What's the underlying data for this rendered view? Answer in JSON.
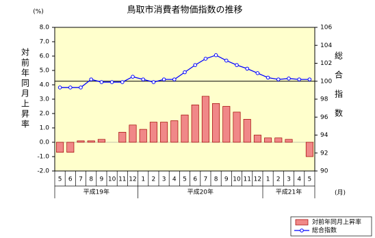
{
  "chart_data": {
    "type": "bar-line",
    "title": "鳥取市消費者物価指数の推移",
    "y_unit": "(%)",
    "x_unit": "(月)",
    "y_label": "対前年同月上昇率",
    "y2_label": "総合指数",
    "categories": [
      "5",
      "6",
      "7",
      "8",
      "9",
      "10",
      "11",
      "12",
      "1",
      "2",
      "3",
      "4",
      "5",
      "6",
      "7",
      "8",
      "9",
      "10",
      "11",
      "12",
      "1",
      "2",
      "3",
      "4",
      "5"
    ],
    "groups": [
      "平成19年",
      "平成20年",
      "平成21年"
    ],
    "series": [
      {
        "name": "対前年同月上昇率",
        "type": "bar",
        "color": "#f08888",
        "edge_color": "#a00000",
        "values": [
          -0.7,
          -0.7,
          0.1,
          0.1,
          0.2,
          0.0,
          0.7,
          1.2,
          0.9,
          1.4,
          1.4,
          1.5,
          1.9,
          2.6,
          3.2,
          2.7,
          2.5,
          2.1,
          1.6,
          0.5,
          0.3,
          0.3,
          0.2,
          0.0,
          -1.0
        ]
      },
      {
        "name": "総合指数",
        "type": "line",
        "axis": "y2",
        "color": "#0000ff",
        "values": [
          99.3,
          99.3,
          99.3,
          100.2,
          99.9,
          99.9,
          99.9,
          100.5,
          100.2,
          99.9,
          100.2,
          100.2,
          101.0,
          101.8,
          102.5,
          102.9,
          102.3,
          101.8,
          101.4,
          100.9,
          100.4,
          100.2,
          100.3,
          100.2,
          100.2
        ]
      }
    ],
    "ylim": [
      -2,
      8
    ],
    "yticks": [
      {
        "value": -2,
        "label": "-2.0"
      },
      {
        "value": -1,
        "label": "-1.0"
      },
      {
        "value": 0,
        "label": "0.0"
      },
      {
        "value": 1,
        "label": "1.0"
      },
      {
        "value": 2,
        "label": "2.0"
      },
      {
        "value": 3,
        "label": "3.0"
      },
      {
        "value": 4,
        "label": "4.0"
      },
      {
        "value": 5,
        "label": "5.0"
      },
      {
        "value": 6,
        "label": "6.0"
      },
      {
        "value": 7,
        "label": "7.0"
      },
      {
        "value": 8,
        "label": "8.0"
      }
    ],
    "y2lim": [
      90,
      106
    ],
    "y2ticks": [
      90,
      92,
      94,
      96,
      98,
      100,
      102,
      104,
      106
    ],
    "y2_reference": 100,
    "background": "#ffffcc",
    "legend": "bottom-right"
  }
}
